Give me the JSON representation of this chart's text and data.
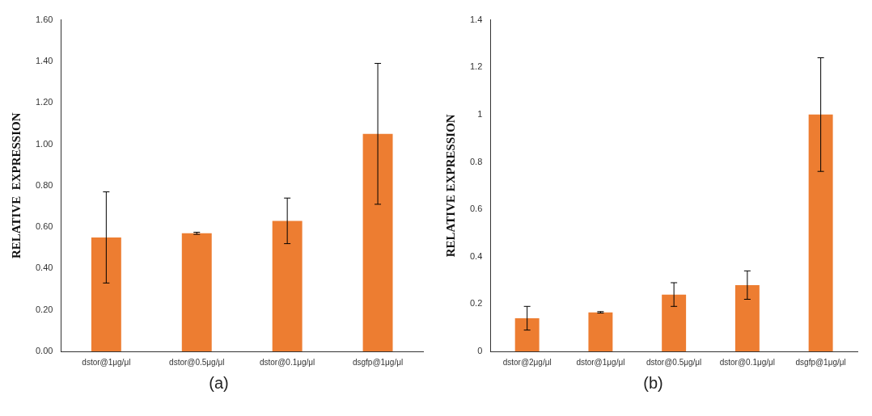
{
  "chart_data": [
    {
      "type": "bar",
      "ylabel": "RELATIVE  EXPRESSION",
      "categories": [
        "dstor@1μg/μl",
        "dstor@0.5μg/μl",
        "dstor@0.1μg/μl",
        "dsgfp@1μg/μl"
      ],
      "values": [
        0.55,
        0.57,
        0.63,
        1.05
      ],
      "errors": [
        0.22,
        0.005,
        0.11,
        0.34
      ],
      "color": "#ed7d31",
      "ylim": [
        0,
        1.6
      ],
      "yticks": [
        {
          "value": 0,
          "label": "0.00"
        },
        {
          "value": 0.2,
          "label": "0.20"
        },
        {
          "value": 0.4,
          "label": "0.40"
        },
        {
          "value": 0.6,
          "label": "0.60"
        },
        {
          "value": 0.8,
          "label": "0.80"
        },
        {
          "value": 1,
          "label": "1.00"
        },
        {
          "value": 1.2,
          "label": "1.20"
        },
        {
          "value": 1.4,
          "label": "1.40"
        },
        {
          "value": 1.6,
          "label": "1.60"
        }
      ],
      "grid": false,
      "legend": false,
      "annotations": [
        "(a)"
      ]
    },
    {
      "type": "bar",
      "ylabel": "RELATIVE EXPRESSION",
      "categories": [
        "dstor@2μg/μl",
        "dstor@1μg/μl",
        "dstor@0.5μg/μl",
        "dstor@0.1μg/μl",
        "dsgfp@1μg/μl"
      ],
      "values": [
        0.14,
        0.165,
        0.24,
        0.28,
        1.0
      ],
      "errors": [
        0.05,
        0.003,
        0.05,
        0.06,
        0.24
      ],
      "color": "#ed7d31",
      "ylim": [
        0,
        1.4
      ],
      "yticks": [
        0,
        0.2,
        0.4,
        0.6,
        0.8,
        1,
        1.2,
        1.4
      ],
      "grid": false,
      "legend": false,
      "annotations": [
        "(b)"
      ]
    }
  ]
}
